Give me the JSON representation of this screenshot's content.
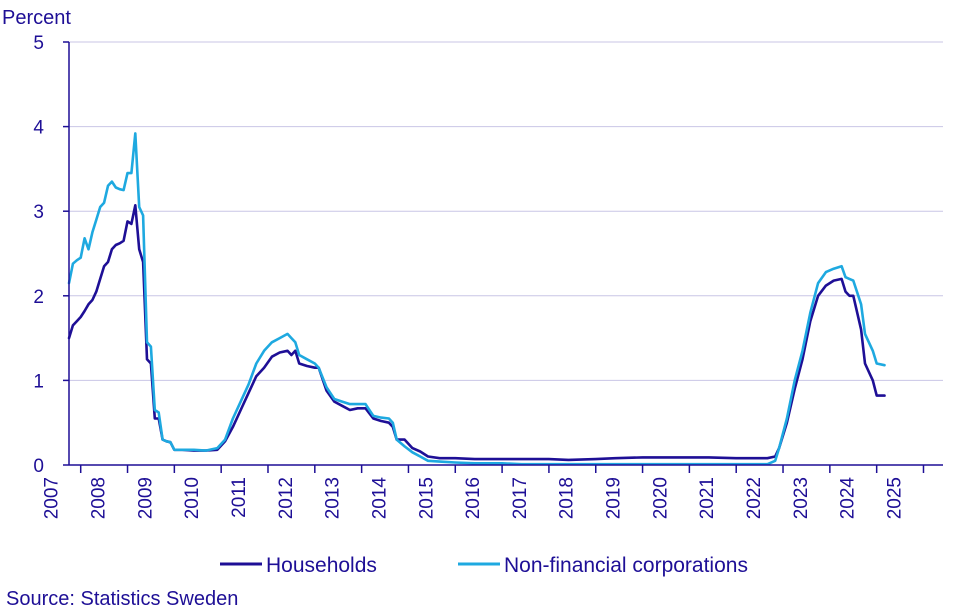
{
  "chart_data": {
    "type": "line",
    "ylabel": "Percent",
    "ylim": [
      0,
      5
    ],
    "yticks": [
      "0",
      "1",
      "2",
      "3",
      "4",
      "5"
    ],
    "xlim": [
      "2006-10",
      "2025-06"
    ],
    "xticks": [
      "2007",
      "2008",
      "2009",
      "2010",
      "2011",
      "2012",
      "2013",
      "2014",
      "2015",
      "2016",
      "2017",
      "2018",
      "2019",
      "2020",
      "2021",
      "2022",
      "2023",
      "2024",
      "2025"
    ],
    "grid": true,
    "legend_position": "bottom",
    "series": [
      {
        "name": "Households",
        "color": "#1e0f96",
        "points": [
          [
            "2006-10",
            1.5
          ],
          [
            "2006-11",
            1.65
          ],
          [
            "2006-12",
            1.7
          ],
          [
            "2007-01",
            1.75
          ],
          [
            "2007-02",
            1.82
          ],
          [
            "2007-03",
            1.9
          ],
          [
            "2007-04",
            1.95
          ],
          [
            "2007-05",
            2.05
          ],
          [
            "2007-06",
            2.2
          ],
          [
            "2007-07",
            2.35
          ],
          [
            "2007-08",
            2.4
          ],
          [
            "2007-09",
            2.55
          ],
          [
            "2007-10",
            2.6
          ],
          [
            "2007-11",
            2.62
          ],
          [
            "2007-12",
            2.65
          ],
          [
            "2008-01",
            2.88
          ],
          [
            "2008-02",
            2.85
          ],
          [
            "2008-03",
            3.07
          ],
          [
            "2008-04",
            2.55
          ],
          [
            "2008-05",
            2.4
          ],
          [
            "2008-06",
            1.25
          ],
          [
            "2008-07",
            1.2
          ],
          [
            "2008-08",
            0.55
          ],
          [
            "2008-09",
            0.55
          ],
          [
            "2008-10",
            0.3
          ],
          [
            "2008-11",
            0.28
          ],
          [
            "2008-12",
            0.27
          ],
          [
            "2009-01",
            0.18
          ],
          [
            "2009-03",
            0.18
          ],
          [
            "2009-06",
            0.17
          ],
          [
            "2009-09",
            0.17
          ],
          [
            "2009-12",
            0.18
          ],
          [
            "2010-02",
            0.28
          ],
          [
            "2010-04",
            0.45
          ],
          [
            "2010-06",
            0.65
          ],
          [
            "2010-08",
            0.85
          ],
          [
            "2010-10",
            1.05
          ],
          [
            "2010-12",
            1.15
          ],
          [
            "2011-02",
            1.28
          ],
          [
            "2011-04",
            1.33
          ],
          [
            "2011-06",
            1.35
          ],
          [
            "2011-07",
            1.3
          ],
          [
            "2011-08",
            1.35
          ],
          [
            "2011-09",
            1.2
          ],
          [
            "2011-11",
            1.17
          ],
          [
            "2012-01",
            1.15
          ],
          [
            "2012-02",
            1.15
          ],
          [
            "2012-04",
            0.88
          ],
          [
            "2012-06",
            0.75
          ],
          [
            "2012-08",
            0.7
          ],
          [
            "2012-10",
            0.65
          ],
          [
            "2012-12",
            0.67
          ],
          [
            "2013-02",
            0.67
          ],
          [
            "2013-04",
            0.55
          ],
          [
            "2013-06",
            0.52
          ],
          [
            "2013-08",
            0.5
          ],
          [
            "2013-09",
            0.45
          ],
          [
            "2013-10",
            0.3
          ],
          [
            "2013-12",
            0.3
          ],
          [
            "2014-02",
            0.2
          ],
          [
            "2014-04",
            0.16
          ],
          [
            "2014-06",
            0.1
          ],
          [
            "2014-09",
            0.08
          ],
          [
            "2015-01",
            0.08
          ],
          [
            "2015-06",
            0.07
          ],
          [
            "2016-01",
            0.07
          ],
          [
            "2016-06",
            0.07
          ],
          [
            "2017-01",
            0.07
          ],
          [
            "2017-06",
            0.06
          ],
          [
            "2018-01",
            0.07
          ],
          [
            "2018-06",
            0.08
          ],
          [
            "2019-01",
            0.09
          ],
          [
            "2019-06",
            0.09
          ],
          [
            "2020-01",
            0.09
          ],
          [
            "2020-06",
            0.09
          ],
          [
            "2021-01",
            0.08
          ],
          [
            "2021-06",
            0.08
          ],
          [
            "2021-09",
            0.08
          ],
          [
            "2021-11",
            0.1
          ],
          [
            "2021-12",
            0.2
          ],
          [
            "2022-02",
            0.5
          ],
          [
            "2022-04",
            0.9
          ],
          [
            "2022-06",
            1.25
          ],
          [
            "2022-08",
            1.7
          ],
          [
            "2022-10",
            2.0
          ],
          [
            "2022-12",
            2.12
          ],
          [
            "2023-02",
            2.18
          ],
          [
            "2023-04",
            2.2
          ],
          [
            "2023-05",
            2.05
          ],
          [
            "2023-06",
            2.0
          ],
          [
            "2023-07",
            2.0
          ],
          [
            "2023-09",
            1.6
          ],
          [
            "2023-10",
            1.2
          ],
          [
            "2023-12",
            1.0
          ],
          [
            "2024-01",
            0.82
          ],
          [
            "2024-03",
            0.82
          ]
        ]
      },
      {
        "name": "Non-financial corporations",
        "color": "#1ea9e0",
        "points": [
          [
            "2006-10",
            2.15
          ],
          [
            "2006-11",
            2.38
          ],
          [
            "2006-12",
            2.42
          ],
          [
            "2007-01",
            2.45
          ],
          [
            "2007-02",
            2.68
          ],
          [
            "2007-03",
            2.55
          ],
          [
            "2007-04",
            2.75
          ],
          [
            "2007-05",
            2.9
          ],
          [
            "2007-06",
            3.05
          ],
          [
            "2007-07",
            3.1
          ],
          [
            "2007-08",
            3.3
          ],
          [
            "2007-09",
            3.35
          ],
          [
            "2007-10",
            3.28
          ],
          [
            "2007-11",
            3.26
          ],
          [
            "2007-12",
            3.25
          ],
          [
            "2008-01",
            3.45
          ],
          [
            "2008-02",
            3.45
          ],
          [
            "2008-03",
            3.92
          ],
          [
            "2008-04",
            3.05
          ],
          [
            "2008-05",
            2.95
          ],
          [
            "2008-06",
            1.45
          ],
          [
            "2008-07",
            1.4
          ],
          [
            "2008-08",
            0.65
          ],
          [
            "2008-09",
            0.62
          ],
          [
            "2008-10",
            0.3
          ],
          [
            "2008-11",
            0.28
          ],
          [
            "2008-12",
            0.27
          ],
          [
            "2009-01",
            0.18
          ],
          [
            "2009-03",
            0.18
          ],
          [
            "2009-06",
            0.18
          ],
          [
            "2009-09",
            0.17
          ],
          [
            "2009-12",
            0.2
          ],
          [
            "2010-02",
            0.3
          ],
          [
            "2010-04",
            0.55
          ],
          [
            "2010-06",
            0.75
          ],
          [
            "2010-08",
            0.95
          ],
          [
            "2010-10",
            1.2
          ],
          [
            "2010-12",
            1.35
          ],
          [
            "2011-02",
            1.45
          ],
          [
            "2011-04",
            1.5
          ],
          [
            "2011-06",
            1.55
          ],
          [
            "2011-07",
            1.5
          ],
          [
            "2011-08",
            1.45
          ],
          [
            "2011-09",
            1.3
          ],
          [
            "2011-11",
            1.25
          ],
          [
            "2012-01",
            1.2
          ],
          [
            "2012-02",
            1.15
          ],
          [
            "2012-04",
            0.92
          ],
          [
            "2012-06",
            0.78
          ],
          [
            "2012-08",
            0.75
          ],
          [
            "2012-10",
            0.72
          ],
          [
            "2012-12",
            0.72
          ],
          [
            "2013-02",
            0.72
          ],
          [
            "2013-04",
            0.58
          ],
          [
            "2013-06",
            0.56
          ],
          [
            "2013-08",
            0.55
          ],
          [
            "2013-09",
            0.5
          ],
          [
            "2013-10",
            0.3
          ],
          [
            "2013-12",
            0.22
          ],
          [
            "2014-02",
            0.15
          ],
          [
            "2014-04",
            0.1
          ],
          [
            "2014-06",
            0.05
          ],
          [
            "2014-09",
            0.04
          ],
          [
            "2015-01",
            0.03
          ],
          [
            "2015-06",
            0.02
          ],
          [
            "2016-01",
            0.02
          ],
          [
            "2016-06",
            0.01
          ],
          [
            "2017-01",
            0.01
          ],
          [
            "2017-06",
            0.01
          ],
          [
            "2018-01",
            0.01
          ],
          [
            "2018-06",
            0.01
          ],
          [
            "2019-01",
            0.01
          ],
          [
            "2019-06",
            0.01
          ],
          [
            "2020-01",
            0.01
          ],
          [
            "2020-06",
            0.01
          ],
          [
            "2021-01",
            0.01
          ],
          [
            "2021-06",
            0.01
          ],
          [
            "2021-09",
            0.01
          ],
          [
            "2021-11",
            0.05
          ],
          [
            "2021-12",
            0.2
          ],
          [
            "2022-02",
            0.55
          ],
          [
            "2022-04",
            1.0
          ],
          [
            "2022-06",
            1.35
          ],
          [
            "2022-08",
            1.8
          ],
          [
            "2022-10",
            2.15
          ],
          [
            "2022-12",
            2.28
          ],
          [
            "2023-02",
            2.32
          ],
          [
            "2023-04",
            2.35
          ],
          [
            "2023-05",
            2.22
          ],
          [
            "2023-06",
            2.2
          ],
          [
            "2023-07",
            2.18
          ],
          [
            "2023-09",
            1.9
          ],
          [
            "2023-10",
            1.55
          ],
          [
            "2023-12",
            1.35
          ],
          [
            "2024-01",
            1.2
          ],
          [
            "2024-03",
            1.18
          ]
        ]
      }
    ]
  },
  "source": "Source: Statistics Sweden"
}
